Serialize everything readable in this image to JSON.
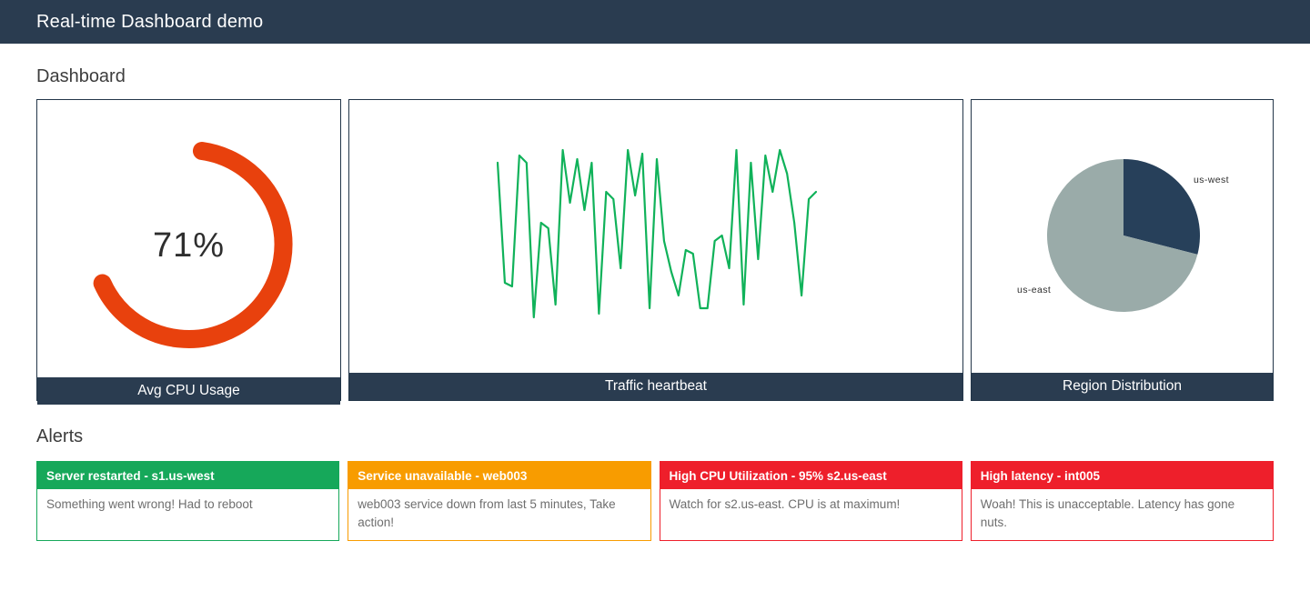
{
  "header": {
    "title": "Real-time Dashboard demo"
  },
  "sections": {
    "dashboard": "Dashboard",
    "alerts": "Alerts"
  },
  "colors": {
    "navy": "#2a3c50",
    "panel_border": "#233649",
    "heading_text": "#3d3d3d",
    "body_text": "#6e6e6e",
    "gauge_arc": "#e8410d",
    "line_green": "#10b25a",
    "pie_dark": "#27405a",
    "pie_gray": "#9aaba9",
    "alert_green": "#16a85a",
    "alert_orange": "#f89c00",
    "alert_red": "#ee1f2b"
  },
  "chart_data": [
    {
      "type": "gauge",
      "title": "Avg CPU Usage",
      "value": 71,
      "unit": "%",
      "display": "71%",
      "range": [
        0,
        100
      ],
      "color": "#e8410d"
    },
    {
      "type": "line",
      "title": "Traffic heartbeat",
      "color": "#10b25a",
      "ylim": [
        0,
        100
      ],
      "grid": false,
      "axes_visible": false,
      "values": [
        88,
        22,
        20,
        92,
        88,
        3,
        55,
        52,
        10,
        95,
        66,
        90,
        62,
        88,
        5,
        72,
        68,
        30,
        95,
        70,
        93,
        8,
        90,
        45,
        28,
        15,
        40,
        38,
        8,
        8,
        45,
        48,
        30,
        95,
        10,
        88,
        35,
        92,
        72,
        95,
        82,
        55,
        15,
        68,
        72
      ]
    },
    {
      "type": "pie",
      "title": "Region Distribution",
      "labels": [
        "us-west",
        "us-east"
      ],
      "values": [
        29,
        71
      ],
      "colors": [
        "#27405a",
        "#9aaba9"
      ],
      "start_angle_deg": 0,
      "legend_position": "outside-labels"
    }
  ],
  "alerts": [
    {
      "level": "success",
      "color": "#16a85a",
      "title": "Server restarted - s1.us-west",
      "message": "Something went wrong! Had to reboot"
    },
    {
      "level": "warning",
      "color": "#f89c00",
      "title": "Service unavailable - web003",
      "message": "web003 service down from last 5 minutes, Take action!"
    },
    {
      "level": "critical",
      "color": "#ee1f2b",
      "title": "High CPU Utilization - 95% s2.us-east",
      "message": "Watch for s2.us-east. CPU is at maximum!"
    },
    {
      "level": "critical",
      "color": "#ee1f2b",
      "title": "High latency - int005",
      "message": "Woah! This is unacceptable. Latency has gone nuts."
    }
  ]
}
